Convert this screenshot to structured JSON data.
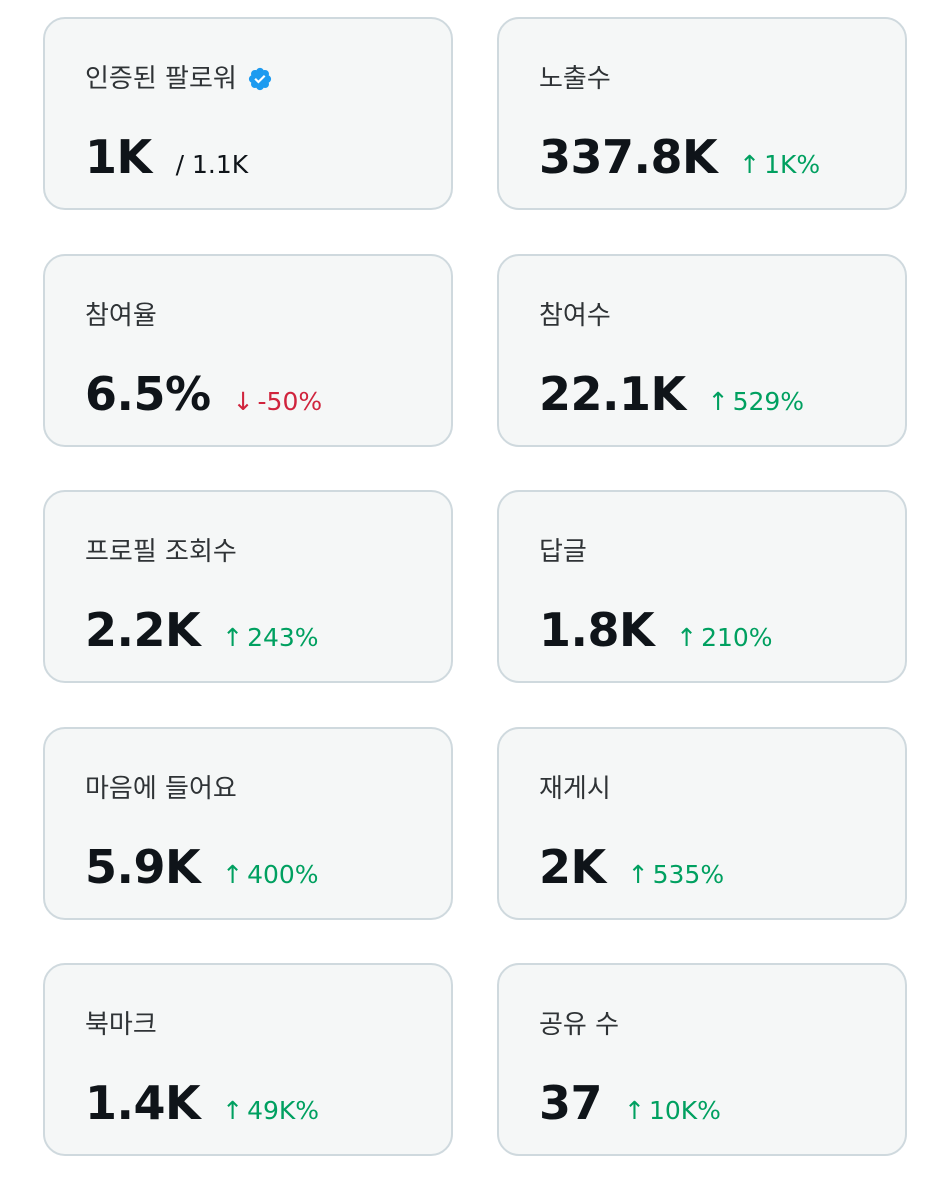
{
  "colors": {
    "card_border": "#cfd9de",
    "card_background": "#f5f7f7",
    "positive": "#00a060",
    "negative": "#d0243d",
    "verified_badge": "#1d9bf0"
  },
  "stats": [
    {
      "label": "인증된 팔로워",
      "value": "1K",
      "total": "/ 1.1K",
      "verified": true
    },
    {
      "label": "노출수",
      "value": "337.8K",
      "change": "1K%",
      "direction": "up"
    },
    {
      "label": "참여율",
      "value": "6.5%",
      "change": "-50%",
      "direction": "down"
    },
    {
      "label": "참여수",
      "value": "22.1K",
      "change": "529%",
      "direction": "up"
    },
    {
      "label": "프로필 조회수",
      "value": "2.2K",
      "change": "243%",
      "direction": "up"
    },
    {
      "label": "답글",
      "value": "1.8K",
      "change": "210%",
      "direction": "up"
    },
    {
      "label": "마음에 들어요",
      "value": "5.9K",
      "change": "400%",
      "direction": "up"
    },
    {
      "label": "재게시",
      "value": "2K",
      "change": "535%",
      "direction": "up"
    },
    {
      "label": "북마크",
      "value": "1.4K",
      "change": "49K%",
      "direction": "up"
    },
    {
      "label": "공유 수",
      "value": "37",
      "change": "10K%",
      "direction": "up"
    }
  ]
}
